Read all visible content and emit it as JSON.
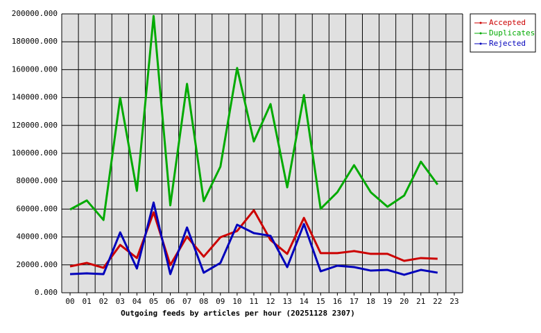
{
  "chart_data": {
    "type": "line",
    "title": "Outgoing feeds by articles per hour (20251128 2307)",
    "categories": [
      "00",
      "01",
      "02",
      "03",
      "04",
      "05",
      "06",
      "07",
      "08",
      "09",
      "10",
      "11",
      "12",
      "13",
      "14",
      "15",
      "16",
      "17",
      "18",
      "19",
      "20",
      "21",
      "22",
      "23"
    ],
    "series": [
      {
        "name": "Accepted",
        "color": "#cc0000",
        "values": [
          18900,
          21400,
          17900,
          34300,
          24900,
          57700,
          19900,
          40300,
          25900,
          39800,
          44300,
          59200,
          37800,
          27900,
          53700,
          28400,
          28400,
          29900,
          27900,
          27900,
          22900,
          24900,
          24400,
          null
        ]
      },
      {
        "name": "Duplicates",
        "color": "#00aa00",
        "values": [
          59700,
          66200,
          52200,
          139800,
          73100,
          198500,
          62700,
          149800,
          65700,
          90500,
          161200,
          108500,
          135300,
          75600,
          141800,
          60200,
          72100,
          91500,
          72100,
          61700,
          69700,
          94000,
          77600,
          null
        ]
      },
      {
        "name": "Rejected",
        "color": "#0000bb",
        "values": [
          13400,
          13900,
          13400,
          43300,
          17400,
          64700,
          13400,
          46800,
          14400,
          21400,
          48800,
          42800,
          40800,
          18400,
          49300,
          15400,
          19400,
          18400,
          15900,
          16400,
          12900,
          16400,
          14400,
          null
        ]
      }
    ],
    "ylim": [
      0,
      200000
    ],
    "yticks": [
      {
        "value": 0,
        "label": "0.000"
      },
      {
        "value": 20000,
        "label": "20000.000"
      },
      {
        "value": 40000,
        "label": "40000.000"
      },
      {
        "value": 60000,
        "label": "60000.000"
      },
      {
        "value": 80000,
        "label": "80000.000"
      },
      {
        "value": 100000,
        "label": "100000.000"
      },
      {
        "value": 120000,
        "label": "120000.000"
      },
      {
        "value": 140000,
        "label": "140000.000"
      },
      {
        "value": 160000,
        "label": "160000.000"
      },
      {
        "value": 180000,
        "label": "180000.000"
      },
      {
        "value": 200000,
        "label": "200000.000"
      }
    ],
    "grid": true
  }
}
